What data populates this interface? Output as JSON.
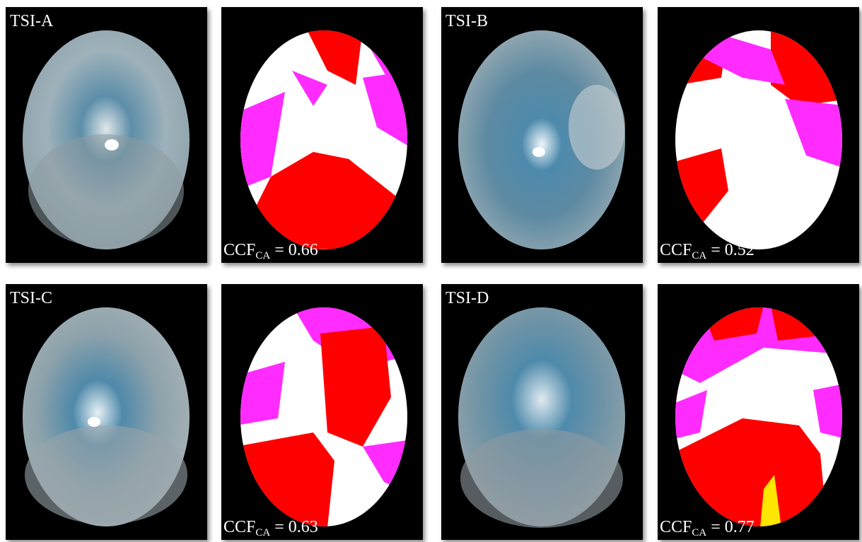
{
  "figure": {
    "panels": [
      {
        "label": "TSI-A",
        "ccf_prefix": "CCF",
        "ccf_sub": "CA",
        "ccf_value": "= 0.66"
      },
      {
        "label": "TSI-B",
        "ccf_prefix": "CCF",
        "ccf_sub": "CA",
        "ccf_value": "= 0.52"
      },
      {
        "label": "TSI-C",
        "ccf_prefix": "CCF",
        "ccf_sub": "CA",
        "ccf_value": "= 0.63"
      },
      {
        "label": "TSI-D",
        "ccf_prefix": "CCF",
        "ccf_sub": "CA",
        "ccf_value": "= 0.77"
      }
    ],
    "colors": {
      "panel_background": "#000000",
      "sky_blue": "#4a86a8",
      "cloud_gray": "#b8c4c8",
      "thick_cloud": "#ff0000",
      "thin_cloud": "#ff2bff",
      "clear_sky": "#ffffff"
    }
  }
}
